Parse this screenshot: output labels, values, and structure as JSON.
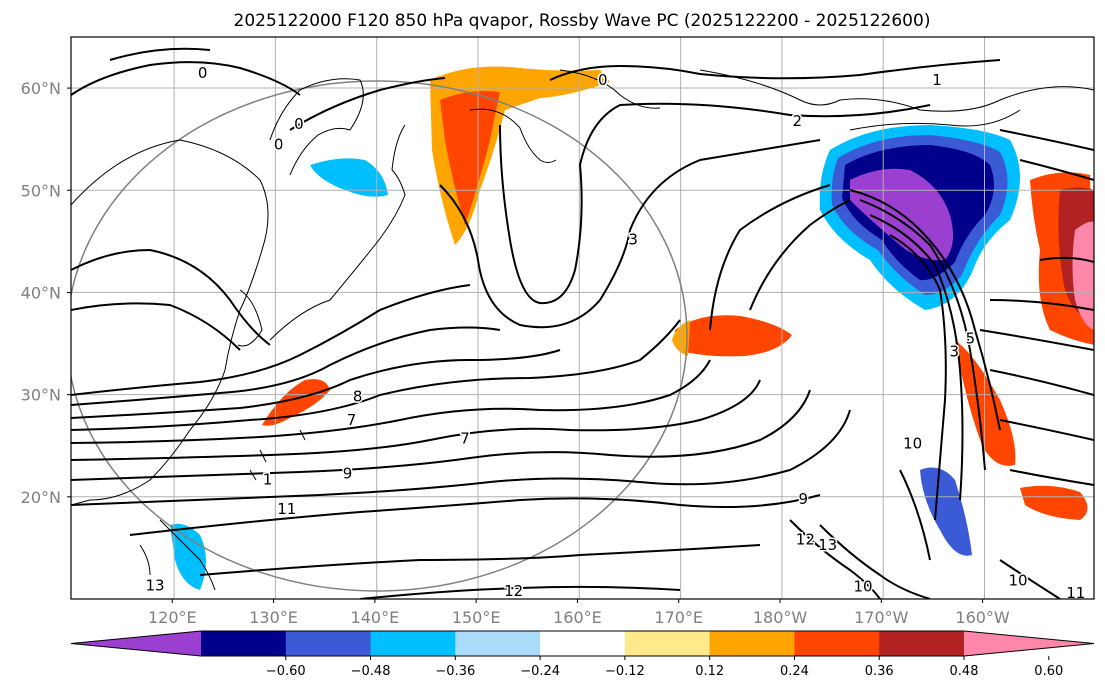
{
  "title": "2025122000 F120 850 hPa qvapor, Rossby Wave PC (2025122200 - 2025122600)",
  "map": {
    "lon_min": 110,
    "lon_max": 211,
    "lat_min": 10,
    "lat_max": 65,
    "lon_ticks": [
      {
        "value": 120,
        "label": "120°E"
      },
      {
        "value": 130,
        "label": "130°E"
      },
      {
        "value": 140,
        "label": "140°E"
      },
      {
        "value": 150,
        "label": "150°E"
      },
      {
        "value": 160,
        "label": "160°E"
      },
      {
        "value": 170,
        "label": "170°E"
      },
      {
        "value": 180,
        "label": "180°W"
      },
      {
        "value": 190,
        "label": "170°W"
      },
      {
        "value": 200,
        "label": "160°W"
      }
    ],
    "lat_ticks": [
      {
        "value": 20,
        "label": "20°N"
      },
      {
        "value": 30,
        "label": "30°N"
      },
      {
        "value": 40,
        "label": "40°N"
      },
      {
        "value": 50,
        "label": "50°N"
      },
      {
        "value": 60,
        "label": "60°N"
      }
    ],
    "contour_labels": [
      {
        "text": "0",
        "lon": 123,
        "lat": 61.5
      },
      {
        "text": "0",
        "lon": 132.5,
        "lat": 56.5
      },
      {
        "text": "0",
        "lon": 130.5,
        "lat": 54.5
      },
      {
        "text": "0",
        "lon": 162.5,
        "lat": 60.8
      },
      {
        "text": "1",
        "lon": 195.5,
        "lat": 60.8
      },
      {
        "text": "2",
        "lon": 181.7,
        "lat": 56.8
      },
      {
        "text": "3",
        "lon": 165.5,
        "lat": 45.2
      },
      {
        "text": "5",
        "lon": 198.8,
        "lat": 35.5
      },
      {
        "text": "3",
        "lon": 197.2,
        "lat": 34.2
      },
      {
        "text": "8",
        "lon": 138.3,
        "lat": 29.8
      },
      {
        "text": "7",
        "lon": 137.7,
        "lat": 27.5
      },
      {
        "text": "7",
        "lon": 148.9,
        "lat": 25.7
      },
      {
        "text": "1",
        "lon": 129.4,
        "lat": 21.7
      },
      {
        "text": "9",
        "lon": 137.3,
        "lat": 22.3
      },
      {
        "text": "10",
        "lon": 193.1,
        "lat": 25.2
      },
      {
        "text": "11",
        "lon": 131.3,
        "lat": 18.8
      },
      {
        "text": "9",
        "lon": 182.3,
        "lat": 19.8
      },
      {
        "text": "12",
        "lon": 182.5,
        "lat": 15.8
      },
      {
        "text": "13",
        "lon": 184.7,
        "lat": 15.3
      },
      {
        "text": "10",
        "lon": 188.2,
        "lat": 11.2
      },
      {
        "text": "10",
        "lon": 203.5,
        "lat": 11.8
      },
      {
        "text": "13",
        "lon": 118.3,
        "lat": 11.3
      },
      {
        "text": "12",
        "lon": 153.7,
        "lat": 10.8
      },
      {
        "text": "11",
        "lon": 209.2,
        "lat": 10.6
      }
    ]
  },
  "colorbar": {
    "ticks": [
      "−0.60",
      "−0.48",
      "−0.36",
      "−0.24",
      "−0.12",
      "0.12",
      "0.24",
      "0.36",
      "0.48",
      "0.60"
    ],
    "colors": [
      "#9b3fd1",
      "#00008b",
      "#3b5bd6",
      "#00bfff",
      "#aadcfa",
      "#ffffff",
      "#ffe98a",
      "#ffa500",
      "#ff4500",
      "#b22222",
      "#ff88aa"
    ]
  }
}
